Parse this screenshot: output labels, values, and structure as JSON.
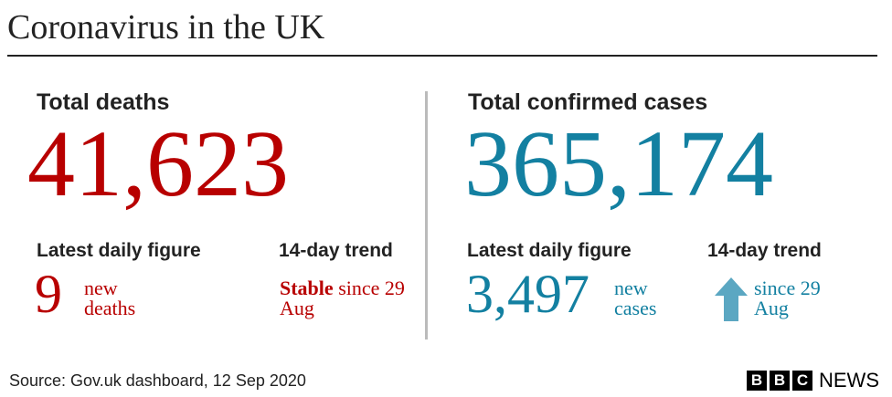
{
  "header": {
    "title": "Coronavirus in the UK"
  },
  "panels": [
    {
      "heading": "Total deaths",
      "total": "41,623",
      "daily": {
        "label": "Latest daily figure",
        "value": "9",
        "unit": "new deaths"
      },
      "trend": {
        "label": "14-day trend",
        "status": "Stable",
        "text": "since 29 Aug"
      }
    },
    {
      "heading": "Total confirmed cases",
      "total": "365,174",
      "daily": {
        "label": "Latest daily figure",
        "value": "3,497",
        "unit": "new cases"
      },
      "trend": {
        "label": "14-day trend",
        "text": "since 29 Aug"
      }
    }
  ],
  "footer": {
    "source": "Source: Gov.uk dashboard, 12 Sep 2020",
    "logo": {
      "letters": [
        "B",
        "B",
        "C"
      ],
      "text": "NEWS"
    }
  }
}
